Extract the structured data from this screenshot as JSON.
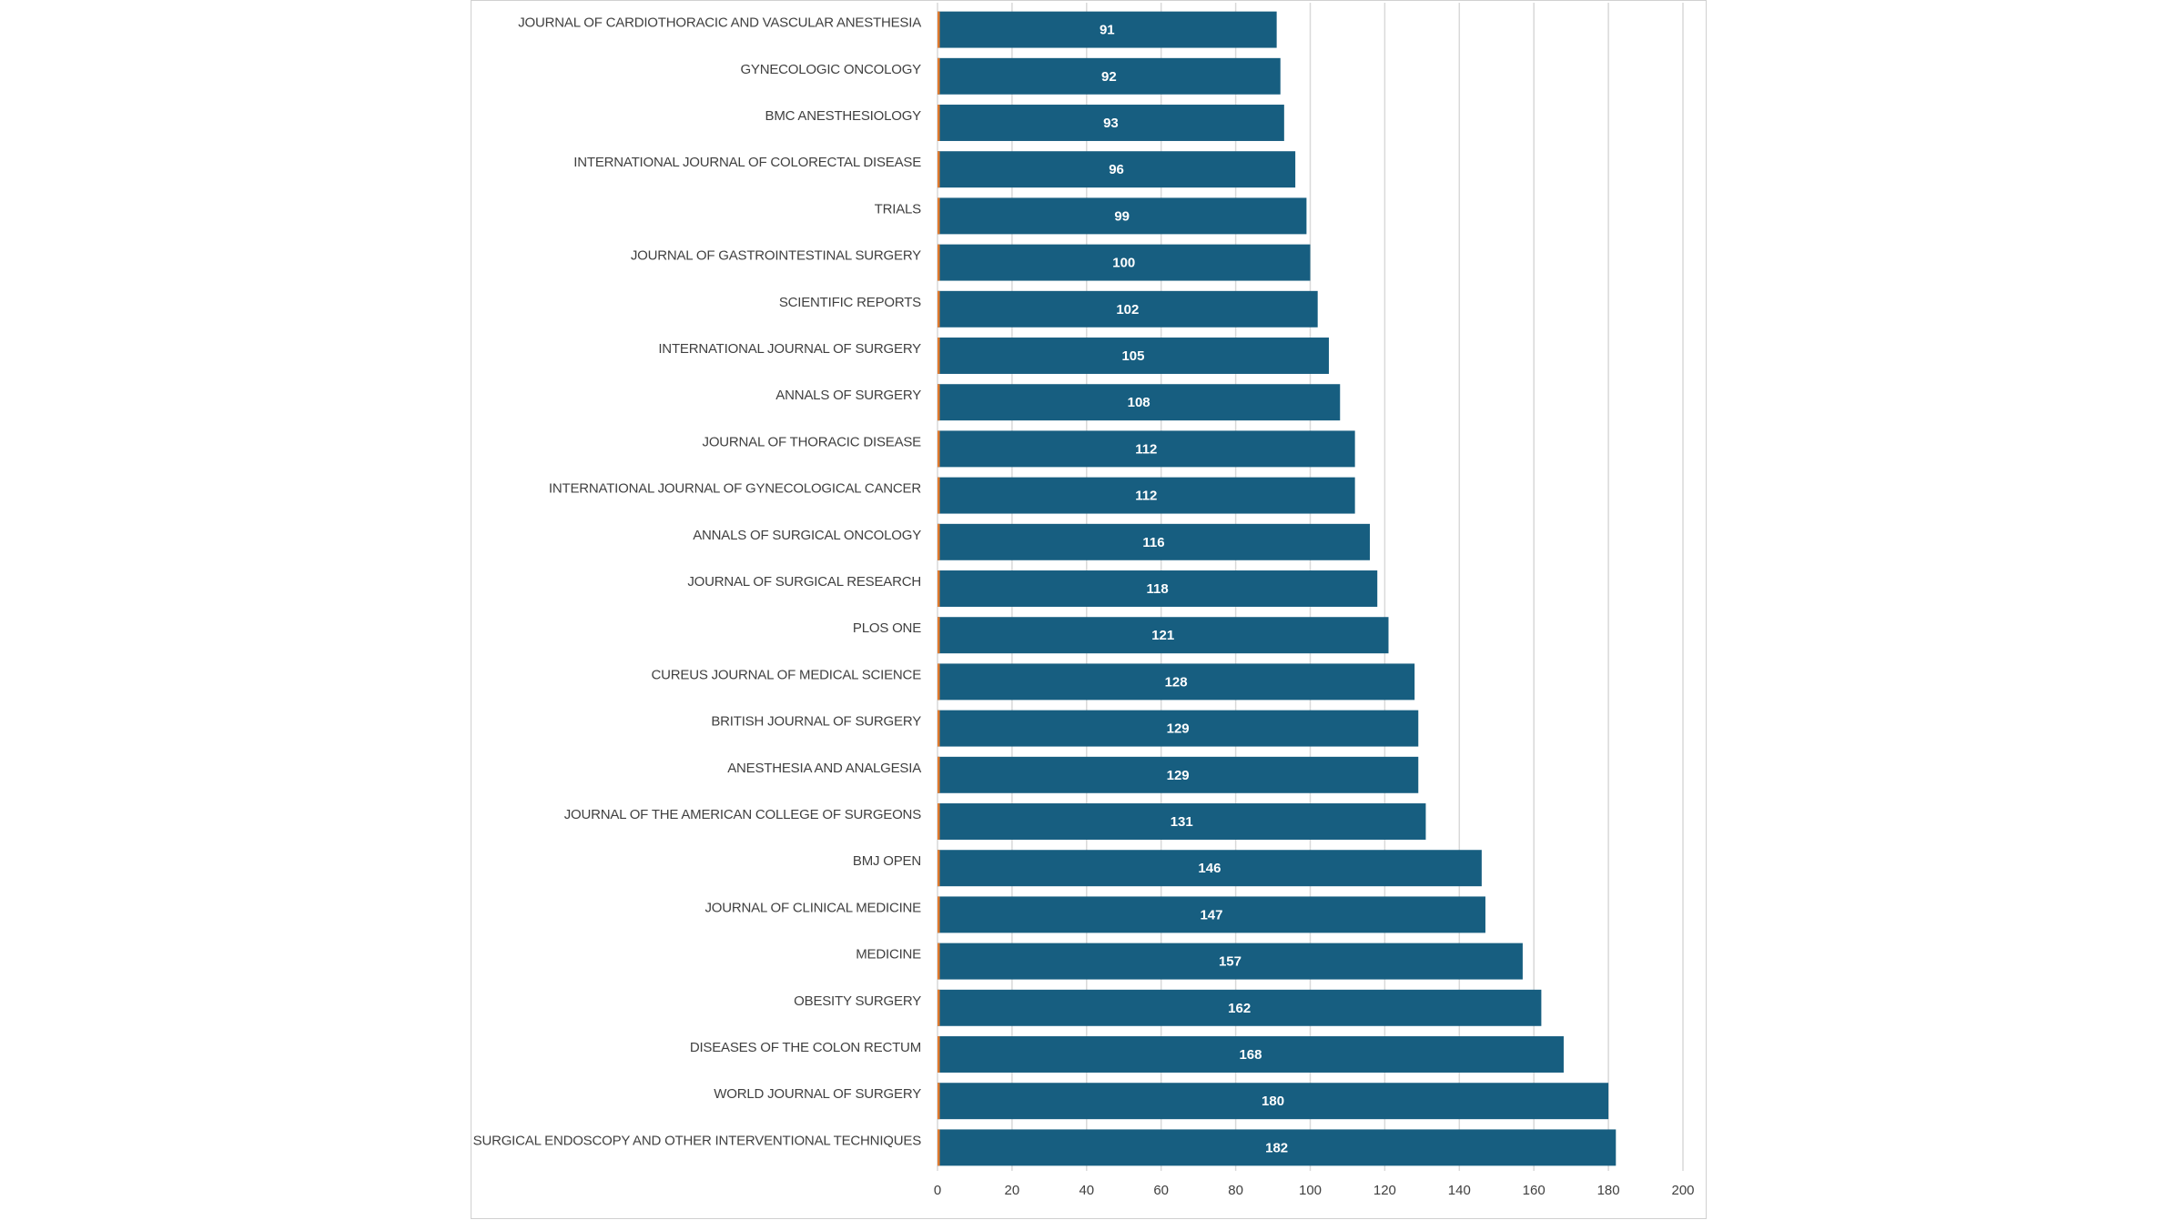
{
  "chart_data": {
    "type": "bar",
    "orientation": "horizontal",
    "categories": [
      "JOURNAL OF CARDIOTHORACIC AND VASCULAR ANESTHESIA",
      "GYNECOLOGIC ONCOLOGY",
      "BMC ANESTHESIOLOGY",
      "INTERNATIONAL JOURNAL OF COLORECTAL DISEASE",
      "TRIALS",
      "JOURNAL OF GASTROINTESTINAL SURGERY",
      "SCIENTIFIC REPORTS",
      "INTERNATIONAL JOURNAL OF SURGERY",
      "ANNALS OF SURGERY",
      "JOURNAL OF THORACIC DISEASE",
      "INTERNATIONAL JOURNAL OF GYNECOLOGICAL CANCER",
      "ANNALS OF SURGICAL ONCOLOGY",
      "JOURNAL OF SURGICAL RESEARCH",
      "PLOS ONE",
      "CUREUS JOURNAL OF MEDICAL SCIENCE",
      "BRITISH JOURNAL OF SURGERY",
      "ANESTHESIA AND ANALGESIA",
      "JOURNAL OF THE AMERICAN COLLEGE OF SURGEONS",
      "BMJ OPEN",
      "JOURNAL OF CLINICAL MEDICINE",
      "MEDICINE",
      "OBESITY SURGERY",
      "DISEASES OF THE COLON RECTUM",
      "WORLD JOURNAL OF SURGERY",
      "SURGICAL ENDOSCOPY AND OTHER INTERVENTIONAL TECHNIQUES"
    ],
    "values": [
      91,
      92,
      93,
      96,
      99,
      100,
      102,
      105,
      108,
      112,
      112,
      116,
      118,
      121,
      128,
      129,
      129,
      131,
      146,
      147,
      157,
      162,
      168,
      180,
      182
    ],
    "data_labels": [
      "91",
      "92",
      "93",
      "96",
      "99",
      "100",
      "102",
      "105",
      "108",
      "112",
      "112",
      "116",
      "118",
      "121",
      "128",
      "129",
      "129",
      "131",
      "146",
      "147",
      "157",
      "162",
      "168",
      "180",
      "182"
    ],
    "xticks": [
      "0",
      "20",
      "40",
      "60",
      "80",
      "100",
      "120",
      "140",
      "160",
      "180",
      "200"
    ],
    "xlim": [
      0,
      200
    ],
    "grid": "vertical",
    "legend": "none",
    "colors": {
      "bar": "#175e80",
      "accent": "#e07a2f",
      "grid": "#d9d9d9",
      "label": "#404040"
    }
  }
}
